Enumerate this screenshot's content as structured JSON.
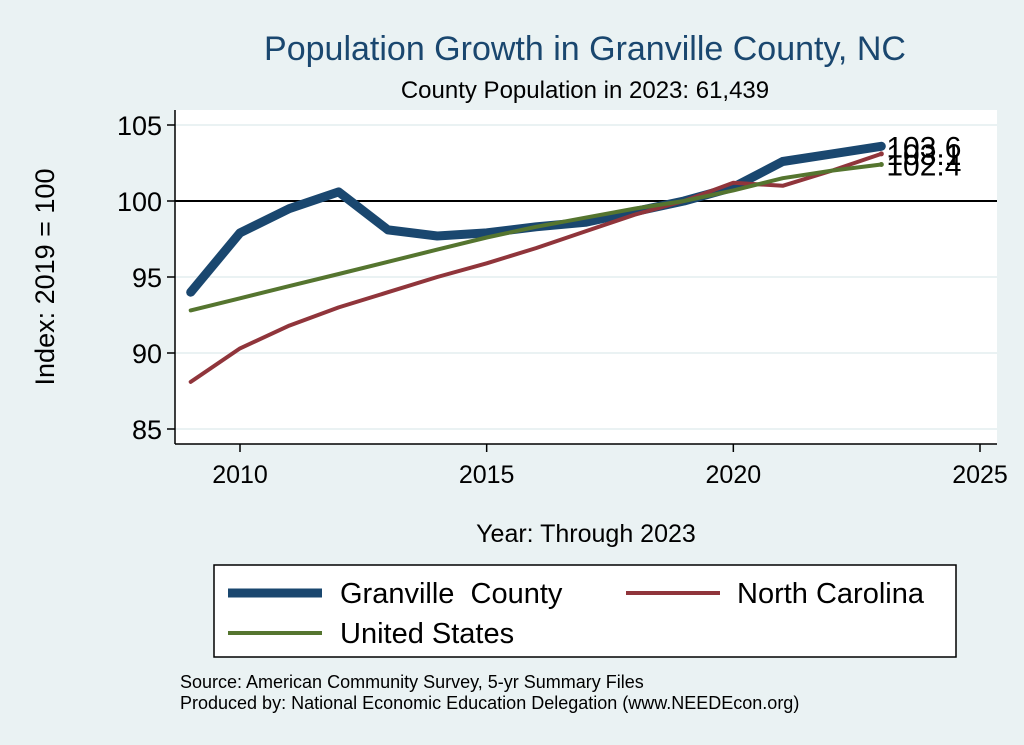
{
  "chart_data": {
    "type": "line",
    "title": "Population Growth in Granville County, NC",
    "subtitle": "County Population in 2023: 61,439",
    "xlabel": "Year: Through 2023",
    "ylabel": "Index: 2019 = 100",
    "xlim": [
      2009,
      2025
    ],
    "ylim": [
      84,
      106
    ],
    "x_ticks": [
      2010,
      2015,
      2020,
      2025
    ],
    "y_ticks": [
      85,
      90,
      95,
      100,
      105
    ],
    "reference_line": 100,
    "x": [
      2009,
      2010,
      2011,
      2012,
      2013,
      2014,
      2015,
      2016,
      2017,
      2018,
      2019,
      2020,
      2021,
      2022,
      2023
    ],
    "series": [
      {
        "name": "Granville  County",
        "color": "#1a476f",
        "width": 9,
        "values": [
          94.0,
          97.9,
          99.5,
          100.6,
          98.1,
          97.7,
          97.9,
          98.3,
          98.6,
          99.3,
          100.0,
          100.9,
          102.6,
          103.1,
          103.6
        ],
        "end_label": "103.6"
      },
      {
        "name": "North Carolina",
        "color": "#90353b",
        "width": 4,
        "values": [
          88.1,
          90.3,
          91.8,
          93.0,
          94.0,
          95.0,
          95.9,
          96.9,
          98.0,
          99.1,
          100.0,
          101.2,
          101.0,
          102.0,
          103.1
        ],
        "end_label": "103.1"
      },
      {
        "name": "United States",
        "color": "#55752f",
        "width": 4,
        "values": [
          92.8,
          93.6,
          94.4,
          95.2,
          96.0,
          96.8,
          97.6,
          98.3,
          98.9,
          99.5,
          100.0,
          100.7,
          101.5,
          102.0,
          102.4
        ],
        "end_label": "102.4"
      }
    ],
    "legend_position": "bottom",
    "source_lines": [
      "Source: American Community Survey, 5-yr Summary Files",
      "Produced by: National Economic Education Delegation (www.NEEDEcon.org)"
    ]
  }
}
